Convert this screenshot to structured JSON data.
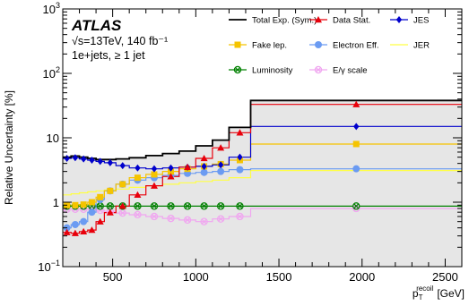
{
  "chart_data": {
    "type": "line",
    "experiment": "ATLAS",
    "info_lines": [
      "√s=13TeV, 140 fb⁻¹",
      "1e+jets, ≥ 1 jet"
    ],
    "xlabel": "p",
    "xlabel_sub": "T",
    "xlabel_sup": "recoil",
    "xlabel_unit": "[GeV]",
    "ylabel": "Relative Uncertainty [%]",
    "y_scale": "log",
    "xlim": [
      200,
      2600
    ],
    "ylim": [
      0.1,
      1000
    ],
    "x_ticks": [
      500,
      1000,
      1500,
      2000,
      2500
    ],
    "y_ticks": [
      {
        "value": 0.1,
        "mantissa": "10",
        "exp": "−1"
      },
      {
        "value": 1,
        "mantissa": "1",
        "exp": ""
      },
      {
        "value": 10,
        "mantissa": "10",
        "exp": ""
      },
      {
        "value": 100,
        "mantissa": "10",
        "exp": "2"
      },
      {
        "value": 1000,
        "mantissa": "10",
        "exp": "3"
      }
    ],
    "bin_edges": [
      200,
      250,
      300,
      350,
      400,
      450,
      520,
      600,
      700,
      800,
      900,
      1000,
      1100,
      1200,
      1330,
      2600
    ],
    "series": [
      {
        "name": "Total Exp. (Sym.)",
        "color": "#000000",
        "marker": "none",
        "band": true,
        "values": [
          5.0,
          5.2,
          5.0,
          4.8,
          4.6,
          4.6,
          4.7,
          4.9,
          5.3,
          5.7,
          6.2,
          7.5,
          9.2,
          14.5,
          38
        ]
      },
      {
        "name": "Data Stat.",
        "color": "#e8000b",
        "marker": "triangle",
        "values": [
          0.34,
          0.33,
          0.35,
          0.37,
          0.5,
          0.69,
          0.87,
          1.3,
          1.8,
          2.5,
          3.5,
          4.8,
          7.0,
          12.0,
          33
        ]
      },
      {
        "name": "JES",
        "color": "#0000cc",
        "marker": "diamond",
        "values": [
          4.8,
          4.9,
          4.7,
          4.5,
          4.3,
          4.1,
          3.7,
          3.4,
          3.3,
          3.4,
          3.5,
          3.6,
          3.8,
          5.0,
          15
        ]
      },
      {
        "name": "Fake lep.",
        "color": "#f5c400",
        "marker": "square",
        "values": [
          0.9,
          0.9,
          0.92,
          1.0,
          1.2,
          1.5,
          1.9,
          2.4,
          2.7,
          3.0,
          3.3,
          3.6,
          3.9,
          4.5,
          8.0
        ]
      },
      {
        "name": "Electron Eff.",
        "color": "#6b9bf2",
        "marker": "circle",
        "values": [
          0.4,
          0.45,
          0.5,
          0.7,
          1.1,
          1.5,
          1.9,
          2.2,
          2.4,
          2.6,
          2.8,
          2.9,
          3.0,
          3.2,
          3.3
        ]
      },
      {
        "name": "JER",
        "color": "#ffff44",
        "marker": "none",
        "values": [
          1.3,
          1.35,
          1.4,
          1.45,
          1.5,
          1.55,
          1.6,
          1.7,
          1.8,
          1.9,
          2.0,
          2.1,
          2.2,
          2.4,
          3.1
        ]
      },
      {
        "name": "Luminosity",
        "color": "#008000",
        "marker": "circle-x",
        "values": [
          0.87,
          0.87,
          0.87,
          0.87,
          0.87,
          0.87,
          0.87,
          0.87,
          0.87,
          0.87,
          0.87,
          0.87,
          0.87,
          0.87,
          0.87
        ]
      },
      {
        "name": "E/γ scale",
        "color": "#f0a6f0",
        "marker": "circle-x",
        "values": [
          0.78,
          0.78,
          0.78,
          0.78,
          0.75,
          0.72,
          0.68,
          0.64,
          0.6,
          0.56,
          0.53,
          0.5,
          0.55,
          0.6,
          0.8
        ]
      }
    ],
    "legend_order": [
      [
        0,
        1,
        2
      ],
      [
        3,
        4,
        5
      ],
      [
        6,
        7
      ]
    ],
    "legend_position": "top-right",
    "grid": false
  }
}
